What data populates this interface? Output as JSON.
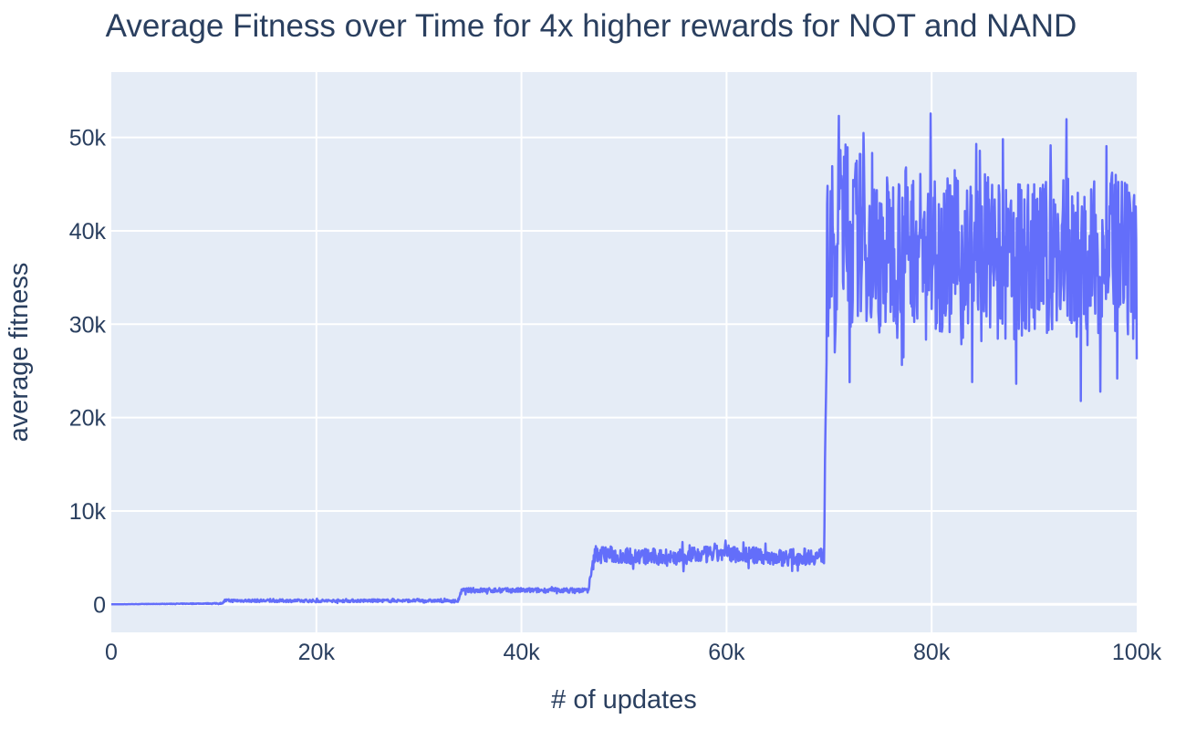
{
  "chart_data": {
    "type": "line",
    "title": "Average Fitness over Time for 4x higher rewards for NOT and NAND",
    "xlabel": "# of updates",
    "ylabel": "average fitness",
    "xlim": [
      0,
      100000
    ],
    "ylim": [
      -3000,
      57000
    ],
    "x_ticks": [
      0,
      20000,
      40000,
      60000,
      80000,
      100000
    ],
    "x_tick_labels": [
      "0",
      "20k",
      "40k",
      "60k",
      "80k",
      "100k"
    ],
    "y_ticks": [
      0,
      10000,
      20000,
      30000,
      40000,
      50000
    ],
    "y_tick_labels": [
      "0",
      "10k",
      "20k",
      "30k",
      "40k",
      "50k"
    ],
    "grid": true,
    "legend": "none",
    "colors": {
      "line": "#636efa",
      "plot_bg": "#e5ecf6",
      "grid": "#ffffff",
      "text": "#2a3f5f"
    },
    "series": [
      {
        "x": [
          0,
          10800,
          11000,
          20000,
          30000,
          33800,
          34200,
          40000,
          46500,
          47200,
          50000,
          55000,
          60000,
          65000,
          69500,
          69800,
          70200,
          70500,
          71000,
          72000,
          73000,
          74000,
          75000,
          77000,
          80000,
          83000,
          85000,
          87000,
          89000,
          91000,
          93000,
          95000,
          97000,
          98000,
          99000,
          100000
        ],
        "y": [
          0,
          100,
          400,
          380,
          400,
          350,
          1500,
          1500,
          1500,
          5500,
          5200,
          5000,
          5500,
          5000,
          5200,
          35000,
          42000,
          30000,
          45000,
          38000,
          40000,
          38000,
          37000,
          39000,
          38000,
          37000,
          38000,
          36000,
          37000,
          37000,
          38000,
          36000,
          38000,
          37000,
          36000,
          35000
        ],
        "band": [
          0,
          50,
          150,
          150,
          150,
          150,
          250,
          250,
          250,
          900,
          900,
          900,
          900,
          900,
          900,
          8000,
          9000,
          9000,
          9000,
          9000,
          9000,
          8500,
          8500,
          8500,
          8500,
          8500,
          8500,
          8500,
          8500,
          8500,
          8500,
          8500,
          8500,
          9000,
          9000,
          9000
        ]
      }
    ]
  }
}
